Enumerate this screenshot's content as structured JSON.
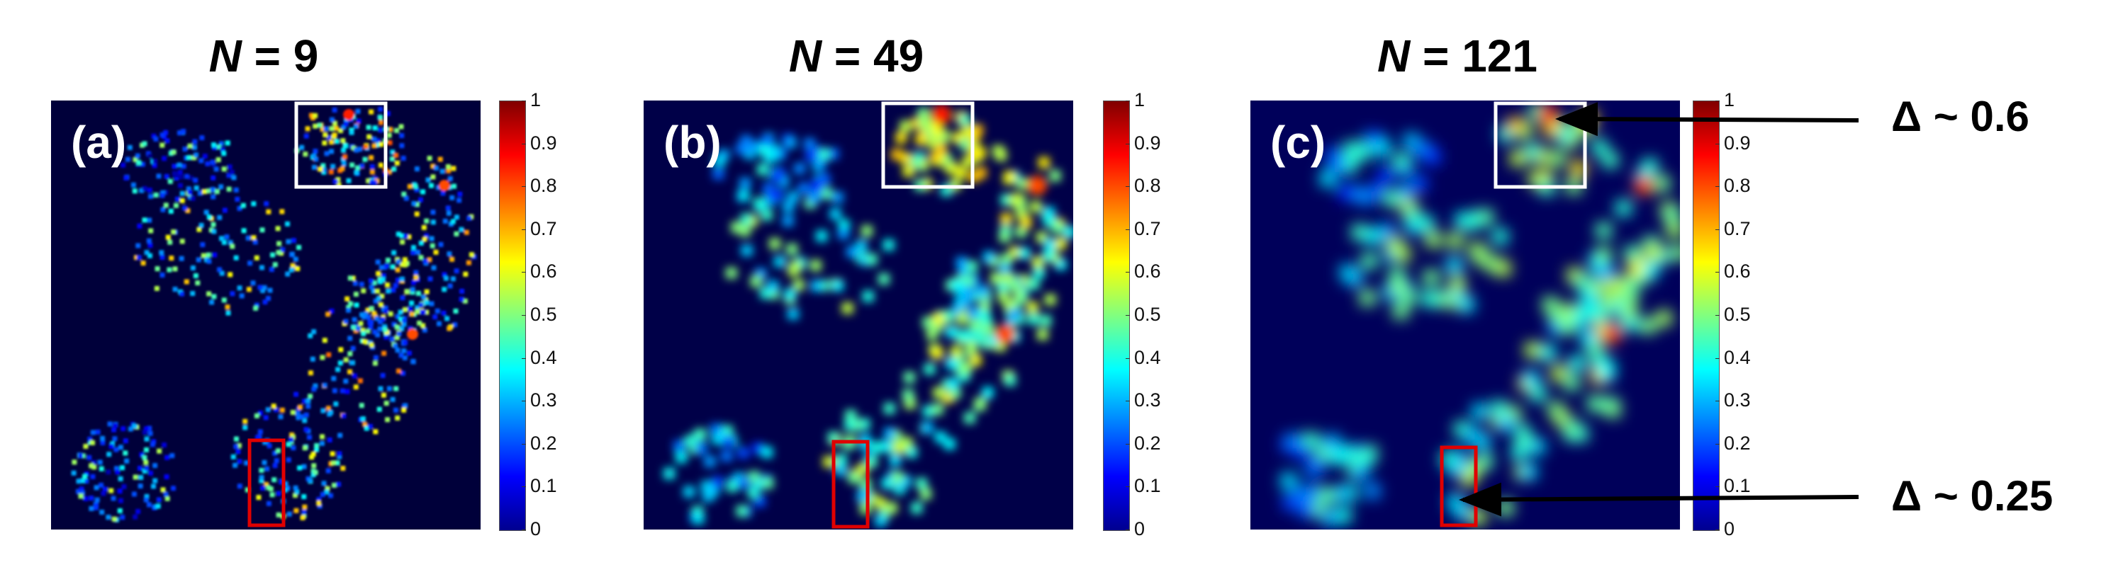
{
  "panels": [
    {
      "n_label": "N",
      "n_value": "= 9",
      "letter": "(a)",
      "blur": 1.5
    },
    {
      "n_label": "N",
      "n_value": "= 49",
      "letter": "(b)",
      "blur": 6
    },
    {
      "n_label": "N",
      "n_value": "= 121",
      "letter": "(c)",
      "blur": 10
    }
  ],
  "colorbar": {
    "ticks": [
      "0",
      "0.1",
      "0.2",
      "0.3",
      "0.4",
      "0.5",
      "0.6",
      "0.7",
      "0.8",
      "0.9",
      "1"
    ],
    "colormap": "jet"
  },
  "annotations": {
    "upper": "Δ ~ 0.6",
    "lower": "Δ ~ 0.25"
  },
  "colors": {
    "white_box": "#ffffff",
    "red_box": "#e00000",
    "arrow": "#000000"
  }
}
